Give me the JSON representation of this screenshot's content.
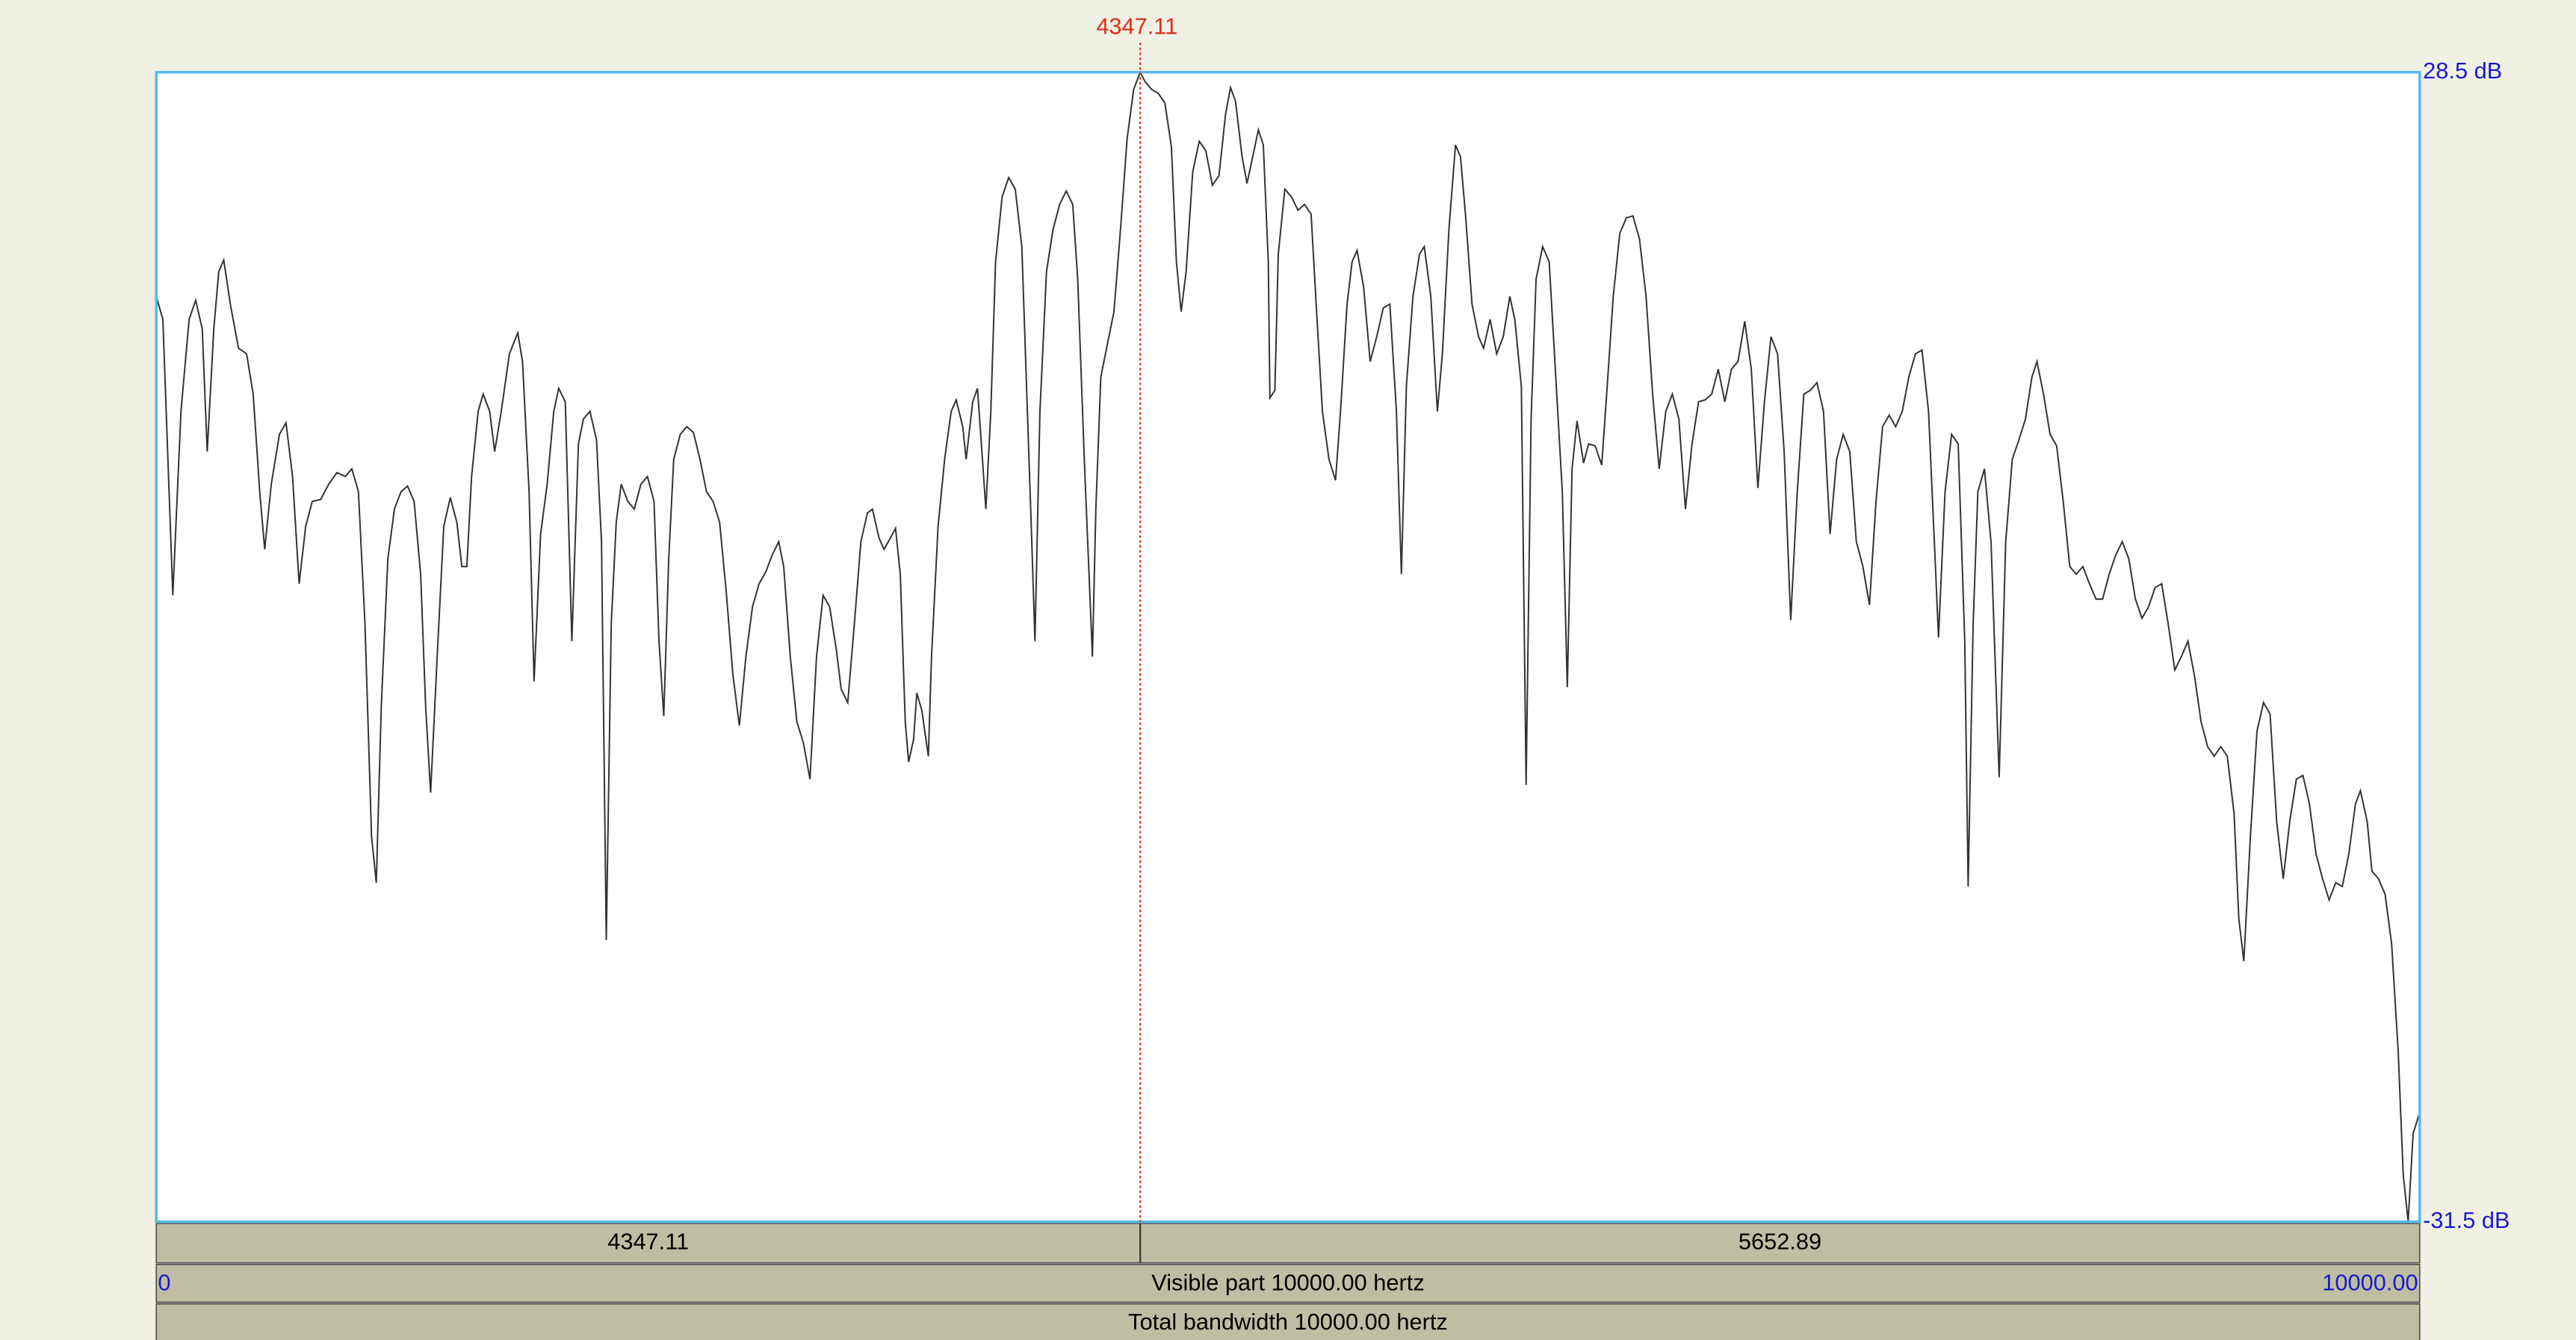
{
  "chart_data": {
    "type": "line",
    "xlim": [
      0,
      10000
    ],
    "ylim": [
      -31.5,
      28.5
    ],
    "xticks": [
      0,
      {
        "value": 10000,
        "label": "10000.00"
      }
    ],
    "yticks": [
      {
        "value": 28.5,
        "label": "28.5 dB"
      },
      {
        "value": -31.5,
        "label": "-31.5 dB"
      }
    ],
    "color": "#333333",
    "frame_color": "#5bb8ea",
    "cursor_color": "#d8301c",
    "axis_label_color": "#1a1ad0",
    "cursor": 4347.11,
    "right_part": 5652.89,
    "visible_part": "Visible part 10000.00 hertz",
    "total_bandwidth": "Total bandwidth 10000.00 hertz",
    "x": [
      0,
      29,
      73,
      109,
      145,
      174,
      203,
      225,
      254,
      276,
      298,
      327,
      363,
      399,
      428,
      457,
      479,
      508,
      544,
      573,
      602,
      631,
      660,
      689,
      726,
      762,
      798,
      835,
      864,
      893,
      922,
      951,
      972,
      994,
      1023,
      1052,
      1081,
      1110,
      1139,
      1168,
      1190,
      1212,
      1241,
      1270,
      1299,
      1328,
      1350,
      1372,
      1393,
      1422,
      1444,
      1473,
      1495,
      1524,
      1560,
      1597,
      1618,
      1647,
      1669,
      1698,
      1727,
      1756,
      1778,
      1807,
      1836,
      1865,
      1887,
      1916,
      1945,
      1967,
      1988,
      2010,
      2032,
      2054,
      2083,
      2112,
      2141,
      2170,
      2199,
      2221,
      2242,
      2264,
      2286,
      2315,
      2344,
      2373,
      2402,
      2431,
      2460,
      2489,
      2518,
      2547,
      2576,
      2605,
      2634,
      2663,
      2692,
      2721,
      2750,
      2772,
      2801,
      2830,
      2859,
      2888,
      2917,
      2946,
      2975,
      3004,
      3026,
      3055,
      3084,
      3113,
      3142,
      3164,
      3193,
      3215,
      3244,
      3266,
      3287,
      3309,
      3324,
      3346,
      3360,
      3382,
      3411,
      3425,
      3454,
      3483,
      3512,
      3534,
      3563,
      3578,
      3607,
      3628,
      3650,
      3665,
      3687,
      3708,
      3737,
      3766,
      3795,
      3824,
      3846,
      3868,
      3882,
      3904,
      3933,
      3962,
      3991,
      4020,
      4049,
      4071,
      4100,
      4136,
      4151,
      4173,
      4202,
      4231,
      4260,
      4289,
      4318,
      4347,
      4369,
      4398,
      4427,
      4456,
      4485,
      4507,
      4528,
      4550,
      4579,
      4608,
      4637,
      4666,
      4695,
      4724,
      4746,
      4768,
      4797,
      4819,
      4848,
      4869,
      4891,
      4913,
      4920,
      4942,
      4957,
      4986,
      5015,
      5044,
      5073,
      5102,
      5123,
      5152,
      5181,
      5210,
      5232,
      5261,
      5283,
      5305,
      5334,
      5363,
      5392,
      5421,
      5450,
      5479,
      5501,
      5523,
      5552,
      5581,
      5602,
      5631,
      5660,
      5682,
      5711,
      5740,
      5762,
      5784,
      5813,
      5842,
      5864,
      5893,
      5922,
      5951,
      5980,
      6002,
      6031,
      6052,
      6074,
      6096,
      6125,
      6154,
      6183,
      6212,
      6234,
      6255,
      6277,
      6306,
      6328,
      6357,
      6386,
      6408,
      6437,
      6466,
      6495,
      6524,
      6553,
      6582,
      6611,
      6640,
      6669,
      6698,
      6727,
      6756,
      6785,
      6814,
      6843,
      6872,
      6901,
      6930,
      6959,
      6988,
      7018,
      7047,
      7076,
      7105,
      7134,
      7163,
      7192,
      7221,
      7250,
      7279,
      7308,
      7337,
      7366,
      7395,
      7424,
      7453,
      7482,
      7511,
      7540,
      7569,
      7598,
      7627,
      7656,
      7685,
      7714,
      7743,
      7772,
      7801,
      7830,
      7859,
      7874,
      7903,
      7932,
      7961,
      7990,
      8005,
      8027,
      8048,
      8077,
      8106,
      8142,
      8171,
      8200,
      8229,
      8258,
      8287,
      8309,
      8338,
      8367,
      8396,
      8425,
      8454,
      8483,
      8512,
      8541,
      8570,
      8599,
      8628,
      8657,
      8686,
      8715,
      8744,
      8773,
      8802,
      8831,
      8860,
      8889,
      8918,
      8947,
      8976,
      9005,
      9034,
      9063,
      9092,
      9121,
      9150,
      9180,
      9201,
      9223,
      9252,
      9281,
      9310,
      9339,
      9368,
      9397,
      9426,
      9455,
      9484,
      9513,
      9542,
      9571,
      9600,
      9629,
      9658,
      9687,
      9716,
      9738,
      9768,
      9789,
      9818,
      9847,
      9876,
      9905,
      9927,
      9949,
      9971,
      10000
    ],
    "values": [
      16.8,
      15.6,
      1.2,
      10.8,
      15.6,
      16.6,
      15.1,
      8.7,
      15.1,
      18.1,
      18.7,
      16.4,
      14.1,
      13.8,
      11.7,
      6.6,
      3.6,
      7.0,
      9.6,
      10.2,
      7.4,
      1.8,
      4.8,
      6.1,
      6.2,
      7.0,
      7.6,
      7.4,
      7.8,
      6.6,
      -0.3,
      -11.4,
      -13.8,
      -4.6,
      3.1,
      5.7,
      6.6,
      6.9,
      6.1,
      2.3,
      -4.6,
      -9.1,
      -2.0,
      4.8,
      6.3,
      5.0,
      2.7,
      2.7,
      7.4,
      10.8,
      11.7,
      10.8,
      8.7,
      10.8,
      13.8,
      14.9,
      13.4,
      6.6,
      -3.3,
      4.4,
      7.0,
      10.8,
      12.0,
      11.3,
      -1.2,
      9.1,
      10.4,
      10.8,
      9.3,
      4.0,
      -16.8,
      -0.3,
      5.0,
      7.0,
      6.1,
      5.7,
      7.0,
      7.4,
      6.1,
      -1.2,
      -5.1,
      3.1,
      8.3,
      9.6,
      10.0,
      9.7,
      8.3,
      6.6,
      6.1,
      5.0,
      1.4,
      -2.9,
      -5.6,
      -2.0,
      0.6,
      1.8,
      2.4,
      3.3,
      4.0,
      2.7,
      -2.0,
      -5.4,
      -6.5,
      -8.4,
      -2.0,
      1.2,
      0.6,
      -1.6,
      -3.7,
      -4.4,
      -0.3,
      4.0,
      5.5,
      5.7,
      4.2,
      3.6,
      4.2,
      4.7,
      2.3,
      -5.4,
      -7.5,
      -6.3,
      -3.9,
      -4.8,
      -7.2,
      -2.0,
      4.8,
      8.3,
      10.8,
      11.4,
      10.0,
      8.3,
      11.3,
      12.0,
      8.3,
      5.7,
      10.8,
      18.6,
      22.0,
      23.0,
      22.4,
      19.4,
      11.7,
      4.0,
      -1.2,
      10.8,
      18.1,
      20.3,
      21.6,
      22.3,
      21.6,
      17.7,
      8.3,
      -2.0,
      5.7,
      12.6,
      14.3,
      16.0,
      20.3,
      25.0,
      27.6,
      28.5,
      28.0,
      27.6,
      27.4,
      26.9,
      24.6,
      18.6,
      16.0,
      18.1,
      23.3,
      24.9,
      24.4,
      22.6,
      23.1,
      26.3,
      27.7,
      27.0,
      24.1,
      22.7,
      24.3,
      25.5,
      24.7,
      18.6,
      11.5,
      11.9,
      19.0,
      22.4,
      22.0,
      21.3,
      21.6,
      21.1,
      16.7,
      10.8,
      8.3,
      7.2,
      10.8,
      16.4,
      18.6,
      19.2,
      17.3,
      13.4,
      14.7,
      16.2,
      16.4,
      10.8,
      2.3,
      12.1,
      16.8,
      19.0,
      19.4,
      16.8,
      10.8,
      13.8,
      20.3,
      24.7,
      24.1,
      21.1,
      16.4,
      14.7,
      14.1,
      15.6,
      13.8,
      14.7,
      16.8,
      15.6,
      12.1,
      -8.7,
      10.4,
      17.7,
      19.4,
      18.6,
      12.6,
      6.6,
      -3.6,
      7.8,
      10.3,
      8.1,
      9.1,
      9.0,
      8.0,
      11.7,
      16.8,
      20.1,
      20.9,
      21.0,
      19.8,
      16.8,
      11.7,
      7.8,
      10.8,
      11.7,
      10.4,
      5.7,
      9.1,
      11.3,
      11.4,
      11.7,
      13.0,
      11.3,
      13.0,
      13.4,
      15.5,
      13.0,
      6.8,
      11.3,
      14.7,
      13.8,
      8.7,
      -0.1,
      6.6,
      11.7,
      11.9,
      12.3,
      10.8,
      4.4,
      8.3,
      9.6,
      8.7,
      4.0,
      2.7,
      0.7,
      6.1,
      10.0,
      10.6,
      10.0,
      10.8,
      12.6,
      13.8,
      14.0,
      10.8,
      3.1,
      -1.0,
      6.6,
      9.6,
      9.1,
      -1.2,
      -14.0,
      -0.3,
      6.6,
      7.8,
      4.0,
      -8.3,
      4.0,
      8.3,
      9.3,
      10.4,
      12.6,
      13.4,
      11.7,
      9.6,
      9.0,
      6.1,
      2.7,
      2.3,
      2.7,
      1.8,
      1.0,
      1.0,
      2.3,
      3.3,
      4.0,
      3.1,
      1.0,
      0.0,
      0.6,
      1.6,
      1.8,
      -0.3,
      -2.7,
      -2.0,
      -1.2,
      -3.0,
      -5.4,
      -6.7,
      -7.2,
      -6.7,
      -7.2,
      -10.2,
      -15.7,
      -17.9,
      -11.4,
      -5.9,
      -4.4,
      -5.0,
      -10.6,
      -13.6,
      -10.6,
      -8.4,
      -8.2,
      -9.7,
      -12.3,
      -13.6,
      -14.7,
      -13.8,
      -14.0,
      -12.3,
      -9.7,
      -9.0,
      -10.6,
      -13.2,
      -13.6,
      -14.4,
      -17.0,
      -22.6,
      -29.0,
      -31.5,
      -26.9,
      -25.8
    ]
  }
}
